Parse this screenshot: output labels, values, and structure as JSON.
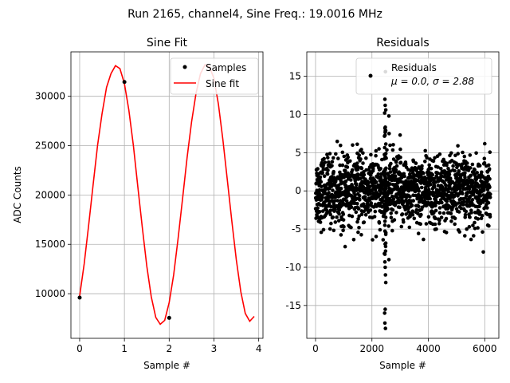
{
  "figure_title": "Run 2165, channel4, Sine Freq.: 19.0016 MHz",
  "chart_data": [
    {
      "type": "line",
      "title": "Sine Fit",
      "xlabel": "Sample #",
      "ylabel": "ADC Counts",
      "xlim": [
        -0.195,
        4.095
      ],
      "ylim": [
        5480,
        34500
      ],
      "xticks": [
        0,
        1,
        2,
        3,
        4
      ],
      "yticks": [
        10000,
        15000,
        20000,
        25000,
        30000
      ],
      "grid": true,
      "legend_position": "top-right",
      "series": [
        {
          "name": "Samples",
          "style": "points",
          "color": "#000000",
          "x": [
            0,
            1,
            2
          ],
          "y": [
            9600,
            31450,
            7550
          ]
        },
        {
          "name": "Sine fit",
          "style": "line",
          "color": "#ff0000",
          "x": [
            0.0,
            0.1,
            0.2,
            0.3,
            0.4,
            0.5,
            0.6,
            0.7,
            0.8,
            0.9,
            1.0,
            1.1,
            1.2,
            1.3,
            1.4,
            1.5,
            1.6,
            1.7,
            1.8,
            1.9,
            2.0,
            2.1,
            2.2,
            2.3,
            2.4,
            2.5,
            2.6,
            2.7,
            2.8,
            2.9,
            3.0,
            3.1,
            3.2,
            3.3,
            3.4,
            3.5,
            3.6,
            3.7,
            3.8,
            3.9
          ],
          "y": [
            9800,
            13000,
            16900,
            21000,
            25000,
            28200,
            30900,
            32300,
            33100,
            32800,
            31300,
            28600,
            25000,
            20800,
            16700,
            12800,
            9700,
            7600,
            6900,
            7300,
            9100,
            11900,
            15600,
            19700,
            23800,
            27400,
            30300,
            32300,
            33200,
            33000,
            31800,
            29200,
            25600,
            21500,
            17300,
            13400,
            10200,
            8000,
            7200,
            7700
          ]
        }
      ]
    },
    {
      "type": "scatter",
      "title": "Residuals",
      "xlabel": "Sample #",
      "ylabel": "",
      "xlim": [
        -310,
        6500
      ],
      "ylim": [
        -19.3,
        18.2
      ],
      "xticks": [
        0,
        2000,
        4000,
        6000
      ],
      "yticks": [
        -15,
        -10,
        -5,
        0,
        5,
        10,
        15
      ],
      "grid": true,
      "legend_position": "top-right",
      "legend_entries": [
        "Residuals",
        "μ = 0.0, σ = 2.88"
      ],
      "series": [
        {
          "name": "Residuals",
          "color": "#000000",
          "n_points": 6200,
          "mean": 0.0,
          "sigma": 2.88,
          "typical_range": [
            -6.5,
            6.5
          ],
          "outliers": [
            {
              "x": 2480,
              "y": -18.0
            },
            {
              "x": 2460,
              "y": -17.3
            },
            {
              "x": 2450,
              "y": -16.0
            },
            {
              "x": 2470,
              "y": -15.5
            },
            {
              "x": 2480,
              "y": 15.6
            },
            {
              "x": 2460,
              "y": 12.0
            },
            {
              "x": 2470,
              "y": 11.2
            },
            {
              "x": 2490,
              "y": 10.6
            },
            {
              "x": 2450,
              "y": 10.2
            },
            {
              "x": 2600,
              "y": 9.8
            },
            {
              "x": 2610,
              "y": 7.5
            },
            {
              "x": 2480,
              "y": -11.0
            },
            {
              "x": 2470,
              "y": -10.0
            },
            {
              "x": 2460,
              "y": -9.3
            },
            {
              "x": 2600,
              "y": -9.0
            },
            {
              "x": 2490,
              "y": -12.0
            },
            {
              "x": 3000,
              "y": 7.3
            },
            {
              "x": 1480,
              "y": 6.1
            },
            {
              "x": 5950,
              "y": -8.0
            },
            {
              "x": 1050,
              "y": -7.3
            }
          ]
        }
      ]
    }
  ]
}
